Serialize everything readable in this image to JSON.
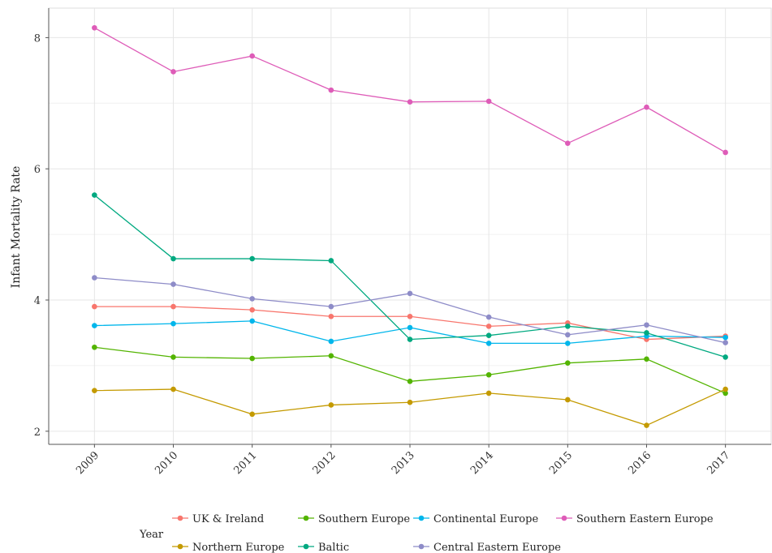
{
  "chart_data": {
    "type": "line",
    "title": "",
    "xlabel": "",
    "ylabel": "Infant Mortality Rate",
    "x": [
      2009,
      2010,
      2011,
      2012,
      2013,
      2014,
      2015,
      2016,
      2017
    ],
    "ylim": [
      1.8,
      8.45
    ],
    "yticks": [
      2,
      4,
      6,
      8
    ],
    "grid": true,
    "legend": {
      "title": "Year",
      "position": "bottom"
    },
    "series": [
      {
        "name": "UK & Ireland",
        "color": "#F8766D",
        "values": [
          3.9,
          3.9,
          3.85,
          3.75,
          3.75,
          3.6,
          3.65,
          3.4,
          3.45
        ]
      },
      {
        "name": "Southern Europe",
        "color": "#53B400",
        "values": [
          3.28,
          3.13,
          3.11,
          3.15,
          2.76,
          2.86,
          3.04,
          3.1,
          2.58
        ]
      },
      {
        "name": "Continental Europe",
        "color": "#00B6EB",
        "values": [
          3.61,
          3.64,
          3.68,
          3.37,
          3.58,
          3.34,
          3.34,
          3.45,
          3.43
        ]
      },
      {
        "name": "Southern Eastern Europe",
        "color": "#DE5CB8",
        "values": [
          8.15,
          7.48,
          7.72,
          7.2,
          7.02,
          7.03,
          6.39,
          6.94,
          6.25
        ]
      },
      {
        "name": "Northern Europe",
        "color": "#C49A00",
        "values": [
          2.62,
          2.64,
          2.26,
          2.4,
          2.44,
          2.58,
          2.48,
          2.09,
          2.64
        ]
      },
      {
        "name": "Baltic",
        "color": "#00A980",
        "values": [
          5.6,
          4.63,
          4.63,
          4.6,
          3.4,
          3.46,
          3.6,
          3.5,
          3.13
        ]
      },
      {
        "name": "Central Eastern Europe",
        "color": "#8E8CC8",
        "values": [
          4.34,
          4.24,
          4.02,
          3.9,
          4.1,
          3.74,
          3.47,
          3.62,
          3.35
        ]
      }
    ]
  }
}
